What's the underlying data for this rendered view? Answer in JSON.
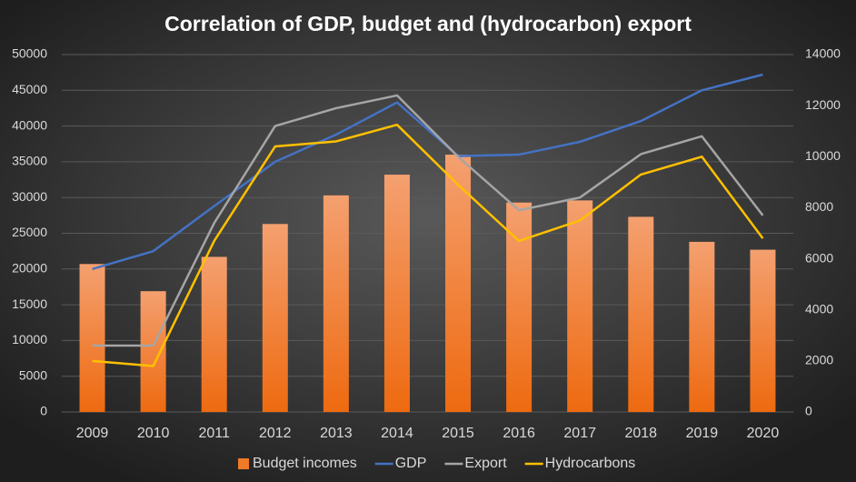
{
  "chart_data": {
    "type": "bar",
    "title": "Correlation of GDP, budget and (hydrocarbon) export",
    "categories": [
      "2009",
      "2010",
      "2011",
      "2012",
      "2013",
      "2014",
      "2015",
      "2016",
      "2017",
      "2018",
      "2019",
      "2020"
    ],
    "series": [
      {
        "name": "Budget incomes",
        "type": "bar",
        "color": "#f07a26",
        "values": [
          20700,
          16900,
          21700,
          26300,
          30300,
          33200,
          36000,
          29300,
          29600,
          27300,
          23800,
          22700
        ]
      },
      {
        "name": "GDP",
        "type": "line",
        "color": "#4472c4",
        "values": [
          20000,
          22500,
          28800,
          35000,
          38800,
          43300,
          35800,
          36000,
          37800,
          40700,
          45000,
          47200
        ]
      },
      {
        "name": "Export",
        "type": "line",
        "color": "#a5a5a5",
        "axis": "y2",
        "values": [
          2600,
          2600,
          7400,
          11200,
          11900,
          12400,
          10000,
          7900,
          8400,
          10100,
          10800,
          7700
        ]
      },
      {
        "name": "Hydrocarbons",
        "type": "line",
        "color": "#ffc000",
        "axis": "y2",
        "values": [
          2000,
          1800,
          6700,
          10400,
          10600,
          11250,
          8900,
          6700,
          7500,
          9300,
          10000,
          6800
        ]
      }
    ],
    "ylim": [
      0,
      50000
    ],
    "yticks": [
      0,
      5000,
      10000,
      15000,
      20000,
      25000,
      30000,
      35000,
      40000,
      45000,
      50000
    ],
    "y2lim": [
      0,
      14000
    ],
    "y2ticks": [
      0,
      2000,
      4000,
      6000,
      8000,
      10000,
      12000,
      14000
    ],
    "grid": true,
    "legend": "bottom"
  }
}
